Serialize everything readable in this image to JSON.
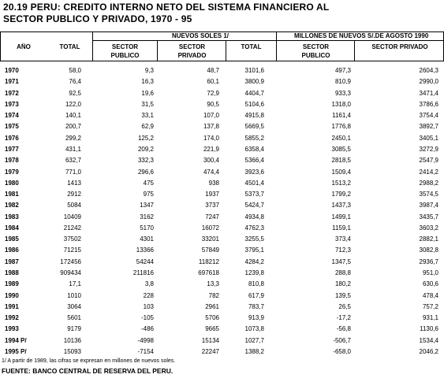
{
  "header": {
    "title_line1": "20.19  PERU: CREDITO INTERNO NETO DEL SISTEMA FINANCIERO AL",
    "title_line2": "SECTOR PUBLICO Y PRIVADO, 1970 - 95"
  },
  "table": {
    "col_year": "AÑO",
    "col_total": "TOTAL",
    "group_soles": "NUEVOS SOLES  1/",
    "group_millones": "MILLONES DE NUEVOS S/.DE AGOSTO 1990",
    "sub": [
      "SECTOR PUBLICO",
      "SECTOR PRIVADO",
      "TOTAL",
      "SECTOR PUBLICO",
      "SECTOR PRIVADO"
    ],
    "rows": [
      [
        "1970",
        "58,0",
        "9,3",
        "48,7",
        "3101,6",
        "497,3",
        "2604,3"
      ],
      [
        "1971",
        "76,4",
        "16,3",
        "60,1",
        "3800,9",
        "810,9",
        "2990,0"
      ],
      [
        "1972",
        "92,5",
        "19,6",
        "72,9",
        "4404,7",
        "933,3",
        "3471,4"
      ],
      [
        "1973",
        "122,0",
        "31,5",
        "90,5",
        "5104,6",
        "1318,0",
        "3786,6"
      ],
      [
        "1974",
        "140,1",
        "33,1",
        "107,0",
        "4915,8",
        "1161,4",
        "3754,4"
      ],
      [
        "1975",
        "200,7",
        "62,9",
        "137,8",
        "5669,5",
        "1776,8",
        "3892,7"
      ],
      [
        "1976",
        "299,2",
        "125,2",
        "174,0",
        "5855,2",
        "2450,1",
        "3405,1"
      ],
      [
        "1977",
        "431,1",
        "209,2",
        "221,9",
        "6358,4",
        "3085,5",
        "3272,9"
      ],
      [
        "1978",
        "632,7",
        "332,3",
        "300,4",
        "5366,4",
        "2818,5",
        "2547,9"
      ],
      [
        "1979",
        "771,0",
        "296,6",
        "474,4",
        "3923,6",
        "1509,4",
        "2414,2"
      ],
      [
        "1980",
        "1413",
        "475",
        "938",
        "4501,4",
        "1513,2",
        "2988,2"
      ],
      [
        "1981",
        "2912",
        "975",
        "1937",
        "5373,7",
        "1799,2",
        "3574,5"
      ],
      [
        "1982",
        "5084",
        "1347",
        "3737",
        "5424,7",
        "1437,3",
        "3987,4"
      ],
      [
        "1983",
        "10409",
        "3162",
        "7247",
        "4934,8",
        "1499,1",
        "3435,7"
      ],
      [
        "1984",
        "21242",
        "5170",
        "16072",
        "4762,3",
        "1159,1",
        "3603,2"
      ],
      [
        "1985",
        "37502",
        "4301",
        "33201",
        "3255,5",
        "373,4",
        "2882,1"
      ],
      [
        "1986",
        "71215",
        "13366",
        "57849",
        "3795,1",
        "712,3",
        "3082,8"
      ],
      [
        "1987",
        "172456",
        "54244",
        "118212",
        "4284,2",
        "1347,5",
        "2936,7"
      ],
      [
        "1988",
        "909434",
        "211816",
        "697618",
        "1239,8",
        "288,8",
        "951,0"
      ],
      [
        "1989",
        "17,1",
        "3,8",
        "13,3",
        "810,8",
        "180,2",
        "630,6"
      ],
      [
        "1990",
        "1010",
        "228",
        "782",
        "617,9",
        "139,5",
        "478,4"
      ],
      [
        "1991",
        "3064",
        "103",
        "2961",
        "783,7",
        "26,5",
        "757,2"
      ],
      [
        "1992",
        "5601",
        "-105",
        "5706",
        "913,9",
        "-17,2",
        "931,1"
      ],
      [
        "1993",
        "9179",
        "-486",
        "9665",
        "1073,8",
        "-56,8",
        "1130,6"
      ],
      [
        "1994 P/",
        "10136",
        "-4998",
        "15134",
        "1027,7",
        "-506,7",
        "1534,4"
      ],
      [
        "1995 P/",
        "15093",
        "-7154",
        "22247",
        "1388,2",
        "-658,0",
        "2046,2"
      ]
    ]
  },
  "footnote": "1/ A partir de 1989, las cifras se expresan en millones de nuevos soles.",
  "source": "FUENTE: BANCO CENTRAL DE RESERVA DEL PERU."
}
